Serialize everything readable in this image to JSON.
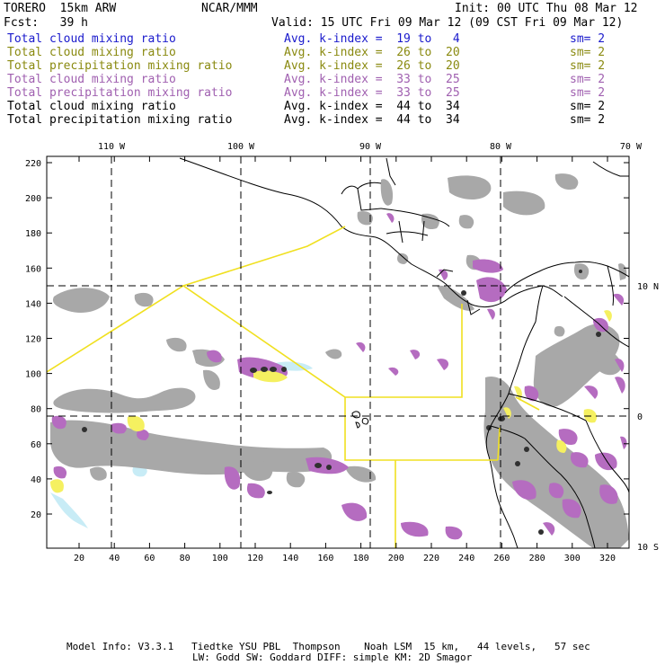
{
  "header": {
    "model": "TORERO  15km ARW",
    "center": "NCAR/MMM",
    "init": "Init: 00 UTC Thu 08 Mar 12",
    "fcst": "Fcst:   39 h",
    "valid": "Valid: 15 UTC Fri 09 Mar 12 (09 CST Fri 09 Mar 12)"
  },
  "legend": [
    {
      "field": "Total cloud mixing ratio",
      "index": "Avg. k-index =  19 to   4",
      "sm": "sm= 2",
      "color": "#1a1acc"
    },
    {
      "field": "Total cloud mixing ratio",
      "index": "Avg. k-index =  26 to  20",
      "sm": "sm= 2",
      "color": "#8a8a10"
    },
    {
      "field": "Total precipitation mixing ratio",
      "index": "Avg. k-index =  26 to  20",
      "sm": "sm= 2",
      "color": "#8a8a10"
    },
    {
      "field": "Total cloud mixing ratio",
      "index": "Avg. k-index =  33 to  25",
      "sm": "sm= 2",
      "color": "#a060b0"
    },
    {
      "field": "Total precipitation mixing ratio",
      "index": "Avg. k-index =  33 to  25",
      "sm": "sm= 2",
      "color": "#a060b0"
    },
    {
      "field": "Total cloud mixing ratio",
      "index": "Avg. k-index =  44 to  34",
      "sm": "sm= 2",
      "color": "#000000"
    },
    {
      "field": "Total precipitation mixing ratio",
      "index": "Avg. k-index =  44 to  34",
      "sm": "sm= 2",
      "color": "#000000"
    }
  ],
  "axes": {
    "lon_labels": [
      "110 W",
      "100 W",
      "90 W",
      "80 W",
      "70 W"
    ],
    "lat_labels": [
      "10 N",
      "0",
      "10 S"
    ],
    "y_ticks": [
      "220",
      "200",
      "180",
      "160",
      "140",
      "120",
      "100",
      "80",
      "60",
      "40",
      "20"
    ],
    "x_ticks": [
      "20",
      "40",
      "60",
      "80",
      "100",
      "120",
      "140",
      "160",
      "180",
      "200",
      "220",
      "240",
      "260",
      "280",
      "300",
      "320"
    ]
  },
  "footer": {
    "line1": "Model Info: V3.3.1   Tiedtke YSU PBL  Thompson    Noah LSM  15 km,   44 levels,   57 sec",
    "line2": "LW: Godd SW: Goddard DIFF: simple KM: 2D Smagor"
  },
  "colors": {
    "gray_cloud": "#a8a8a8",
    "purple": "#b56cc0",
    "yellow": "#f5f060",
    "lightblue": "#c8ecf6",
    "boundary": "#f0e020"
  }
}
